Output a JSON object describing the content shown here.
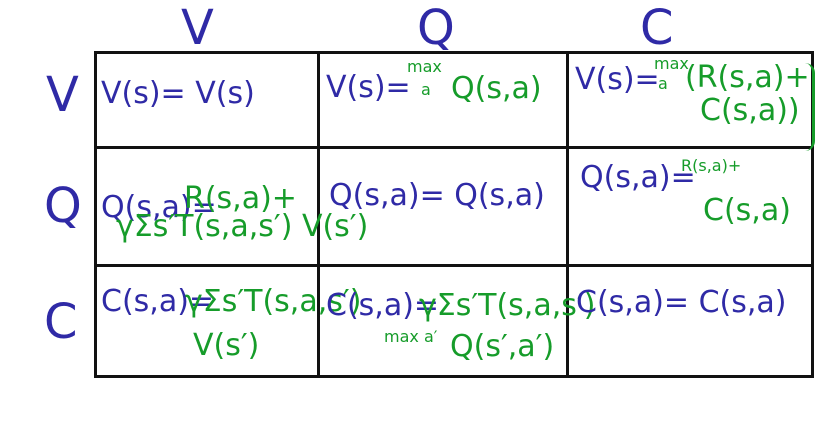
{
  "headers": {
    "columns": [
      "V",
      "Q",
      "C"
    ],
    "rows": [
      "V",
      "Q",
      "C"
    ]
  },
  "cells": {
    "v_v": "V(s)= V(s)",
    "v_q_left": "V(s)=",
    "v_q_max": "max",
    "v_q_a": "a",
    "v_q_right": "Q(s,a)",
    "v_c_left": "V(s)=",
    "v_c_max": "max",
    "v_c_a": "a",
    "v_c_right_1": "(R(s,a)+",
    "v_c_right_2": "C(s,a))",
    "q_v_left": "Q(s,a)=",
    "q_v_r": "R(s,a)+",
    "q_v_sum": "γΣs′T(s,a,s′) V(s′)",
    "q_q": "Q(s,a)= Q(s,a)",
    "q_c_left": "Q(s,a)=",
    "q_c_r": "R(s,a)+",
    "q_c_r2": "C(s,a)",
    "c_v_left": "C(s,a)=",
    "c_v_r": "γΣs′T(s,a,s′)",
    "c_v_r2": "V(s′)",
    "c_q_left": "C(s,a)=",
    "c_q_r": "γΣs′T(s,a,s′)",
    "c_q_max": "max a′",
    "c_q_r2": "Q(s′,a′)",
    "c_c": "C(s,a)= C(s,a)"
  }
}
